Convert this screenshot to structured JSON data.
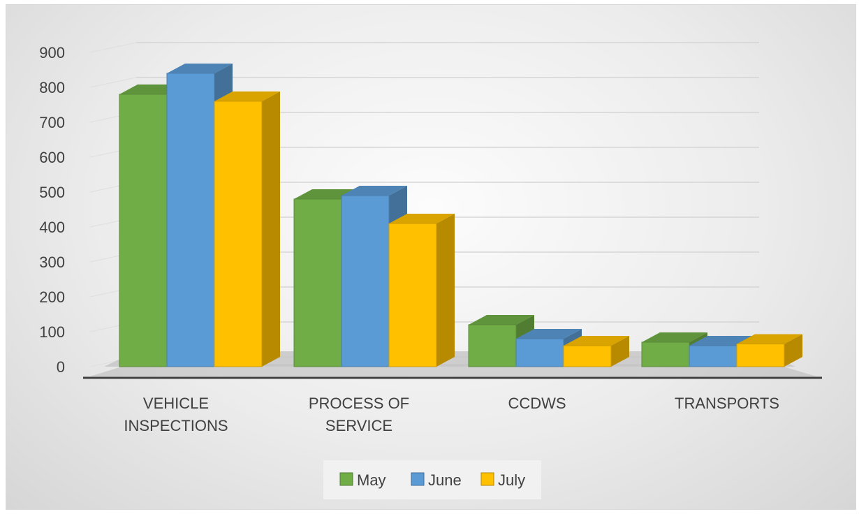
{
  "chart_data": {
    "type": "bar",
    "title": "",
    "xlabel": "",
    "ylabel": "",
    "ylim": [
      0,
      900
    ],
    "yticks": [
      0,
      100,
      200,
      300,
      400,
      500,
      600,
      700,
      800,
      900
    ],
    "categories": [
      [
        "VEHICLE",
        "INSPECTIONS"
      ],
      [
        "PROCESS OF",
        "SERVICE"
      ],
      [
        "CCDWS"
      ],
      [
        "TRANSPORTS"
      ]
    ],
    "series": [
      {
        "name": "May",
        "color": "#70ad47",
        "values": [
          780,
          480,
          120,
          70
        ]
      },
      {
        "name": "June",
        "color": "#5b9bd5",
        "values": [
          840,
          490,
          80,
          60
        ]
      },
      {
        "name": "July",
        "color": "#ffc000",
        "values": [
          760,
          410,
          60,
          65
        ]
      }
    ],
    "grid": true,
    "style": "3d-clustered-column",
    "legend_position": "bottom"
  }
}
